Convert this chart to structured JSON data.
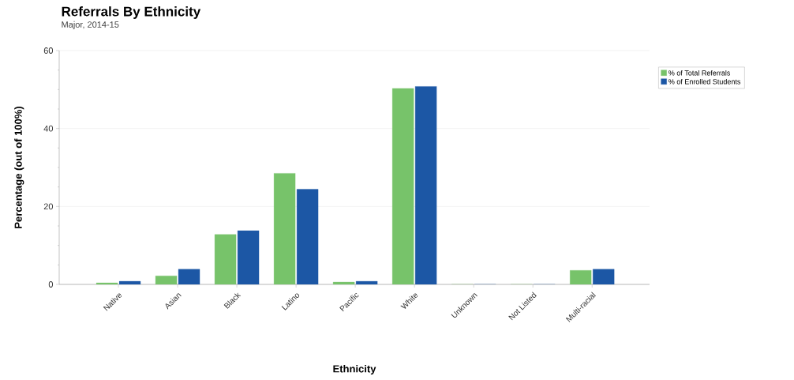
{
  "chart_data": {
    "type": "bar",
    "title": "Referrals By Ethnicity",
    "subtitle": "Major, 2014-15",
    "xlabel": "Ethnicity",
    "ylabel": "Percentage (out of 100%)",
    "categories": [
      "Native",
      "Asian",
      "Black",
      "Latino",
      "Pacific",
      "White",
      "Unknown",
      "Not Listed",
      "Multi-racial"
    ],
    "series": [
      {
        "name": "% of Total Referrals",
        "color": "#77c36a",
        "values": [
          0.4,
          2.2,
          12.8,
          28.5,
          0.6,
          50.3,
          0,
          0,
          3.6
        ]
      },
      {
        "name": "% of Enrolled Students",
        "color": "#1c57a5",
        "values": [
          0.8,
          3.9,
          13.8,
          24.4,
          0.8,
          50.8,
          0,
          0,
          3.9
        ]
      }
    ],
    "ylim": [
      0,
      60
    ],
    "yticks": [
      0,
      20,
      40,
      60
    ],
    "grid": "y",
    "legend": "top right"
  }
}
